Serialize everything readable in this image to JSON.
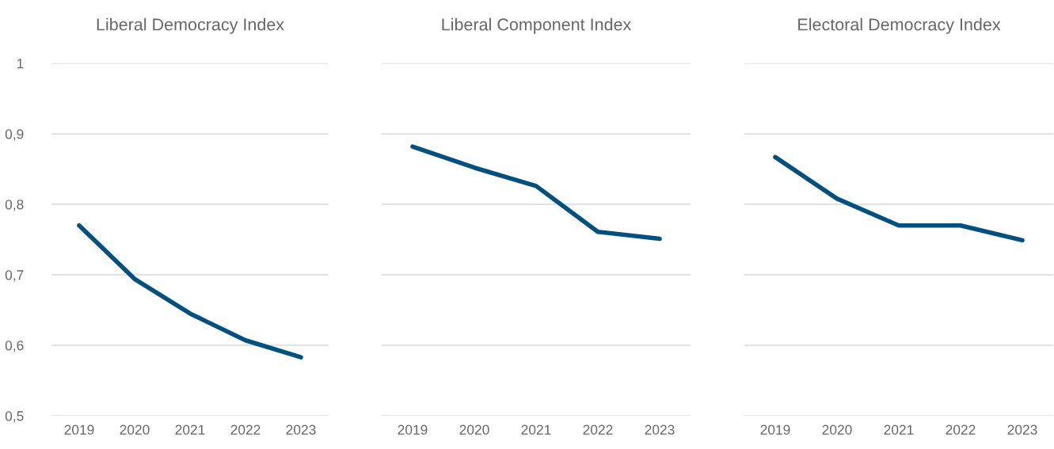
{
  "chart_data": [
    {
      "type": "line",
      "title": "Liberal Democracy Index",
      "categories": [
        "2019",
        "2020",
        "2021",
        "2022",
        "2023"
      ],
      "series": [
        {
          "color": "#00507f",
          "values": [
            0.77,
            0.694,
            0.645,
            0.607,
            0.583
          ]
        }
      ],
      "ylim": [
        0.5,
        1
      ],
      "yticks": [
        {
          "value": 0.5,
          "label": "0,5"
        },
        {
          "value": 0.6,
          "label": "0,6"
        },
        {
          "value": 0.7,
          "label": "0,7"
        },
        {
          "value": 0.8,
          "label": "0,8"
        },
        {
          "value": 0.9,
          "label": "0,9"
        },
        1
      ],
      "grid": "y",
      "marker": "none",
      "line_style": "solid"
    },
    {
      "type": "line",
      "title": "Liberal Component Index",
      "categories": [
        "2019",
        "2020",
        "2021",
        "2022",
        "2023"
      ],
      "series": [
        {
          "color": "#00507f",
          "values": [
            0.882,
            0.852,
            0.826,
            0.761,
            0.751
          ]
        }
      ],
      "ylim": [
        0.5,
        1
      ],
      "yticks": [
        {
          "value": 0.5,
          "label": null
        },
        {
          "value": 0.6,
          "label": null
        },
        {
          "value": 0.7,
          "label": null
        },
        {
          "value": 0.8,
          "label": null
        },
        {
          "value": 0.9,
          "label": null
        },
        {
          "value": 1,
          "label": null
        }
      ],
      "grid": "y",
      "marker": "none",
      "line_style": "solid",
      "tick_labels": "x"
    },
    {
      "type": "line",
      "title": "Electoral Democracy Index",
      "categories": [
        "2019",
        "2020",
        "2021",
        "2022",
        "2023"
      ],
      "series": [
        {
          "color": "#00507f",
          "values": [
            0.867,
            0.808,
            0.77,
            0.77,
            0.749
          ]
        }
      ],
      "ylim": [
        0.5,
        1
      ],
      "yticks": [
        {
          "value": 0.5,
          "label": null
        },
        {
          "value": 0.6,
          "label": null
        },
        {
          "value": 0.7,
          "label": null
        },
        {
          "value": 0.8,
          "label": null
        },
        {
          "value": 0.9,
          "label": null
        },
        {
          "value": 1,
          "label": null
        }
      ],
      "grid": "y",
      "marker": "none",
      "line_style": "solid",
      "tick_labels": "x"
    }
  ]
}
